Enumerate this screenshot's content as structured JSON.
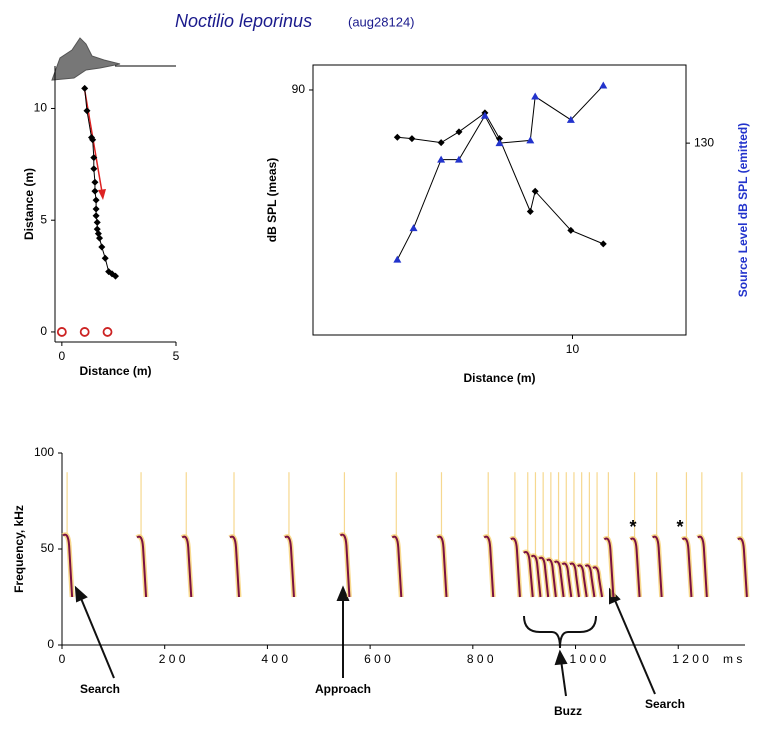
{
  "chart_data": [
    {
      "type": "scatter",
      "title": "Noctilio leporinus",
      "subtitle": "(aug28124)",
      "xlabel": "Distance (m)",
      "ylabel": "Distance (m)",
      "xlim": [
        -0.3,
        5
      ],
      "ylim": [
        -0.45,
        11.9
      ],
      "xticks": [
        0,
        5
      ],
      "yticks": [
        0,
        5,
        10
      ],
      "series": [
        {
          "color": "#000000",
          "marker": "diamond",
          "line": true,
          "x": [
            1.0,
            1.1,
            1.3,
            1.35,
            1.4,
            1.4,
            1.45,
            1.45,
            1.5,
            1.5,
            1.5,
            1.55,
            1.55,
            1.6,
            1.65,
            1.75,
            1.9,
            2.05,
            2.2,
            2.35
          ],
          "y": [
            10.9,
            9.9,
            8.7,
            8.6,
            7.8,
            7.3,
            6.7,
            6.3,
            5.9,
            5.5,
            5.2,
            4.9,
            4.6,
            4.4,
            4.2,
            3.8,
            3.3,
            2.7,
            2.6,
            2.5
          ]
        },
        {
          "color": "#cc2222",
          "marker": "circle-open",
          "line": false,
          "x": [
            0,
            1,
            2
          ],
          "y": [
            0,
            0,
            0
          ]
        }
      ]
    },
    {
      "type": "line",
      "xlabel": "Distance (m)",
      "ylabel": "dB SPL (meas)",
      "y2label": "Source Level dB SPL (emitted)",
      "xlim": [
        2,
        13.5
      ],
      "ylim": [
        71.85,
        91.85
      ],
      "y2lim": [
        116,
        135.7
      ],
      "xticks": [
        10
      ],
      "yticks": [
        90
      ],
      "y2ticks": [
        130
      ],
      "series": [
        {
          "color": "#000000",
          "marker": "diamond",
          "x": [
            4.6,
            5.05,
            5.95,
            6.5,
            7.3,
            7.75,
            8.7,
            8.85,
            9.95,
            10.95
          ],
          "values": [
            86.5,
            86.4,
            86.1,
            86.9,
            88.3,
            86.4,
            81.0,
            82.5,
            79.6,
            78.6
          ]
        },
        {
          "color": "#2233cc",
          "marker": "triangle",
          "axis": "y2",
          "x": [
            4.6,
            5.1,
            5.95,
            6.5,
            7.3,
            7.75,
            8.7,
            8.85,
            9.95,
            10.95
          ],
          "values": [
            121.5,
            123.8,
            128.8,
            128.8,
            132.0,
            130.0,
            130.2,
            133.4,
            131.7,
            134.2
          ]
        }
      ]
    },
    {
      "type": "spectrogram",
      "ylabel": "Frequency, kHz",
      "xunit": "m s",
      "xlim": [
        0,
        1330
      ],
      "ylim": [
        0,
        100
      ],
      "xticks": [
        {
          "value": 0,
          "label": "0"
        },
        {
          "value": 200,
          "label": "2 0 0"
        },
        {
          "value": 400,
          "label": "4 0 0"
        },
        {
          "value": 600,
          "label": "6 0 0"
        },
        {
          "value": 800,
          "label": "8 0 0"
        },
        {
          "value": 1000,
          "label": "1 0 0 0"
        },
        {
          "value": 1200,
          "label": "1 2 0 0"
        }
      ],
      "yticks": [
        0,
        50,
        100
      ],
      "series": [
        {
          "color": "#7a1040",
          "x": [
            8,
            152,
            240,
            333,
            440,
            548,
            649,
            737,
            828,
            880,
            905,
            920,
            935,
            950,
            965,
            980,
            995,
            1010,
            1025,
            1040,
            1062,
            1113,
            1156,
            1214,
            1244,
            1322
          ],
          "values": [
            57,
            56,
            56,
            56,
            56,
            57,
            56,
            56,
            56,
            55,
            48,
            46,
            45,
            44,
            43,
            42,
            42,
            41,
            41,
            40,
            55,
            55,
            56,
            55,
            56,
            55
          ]
        }
      ],
      "annotations": [
        "Search",
        "Approach",
        "Buzz",
        "Search",
        "*",
        "*"
      ]
    }
  ]
}
